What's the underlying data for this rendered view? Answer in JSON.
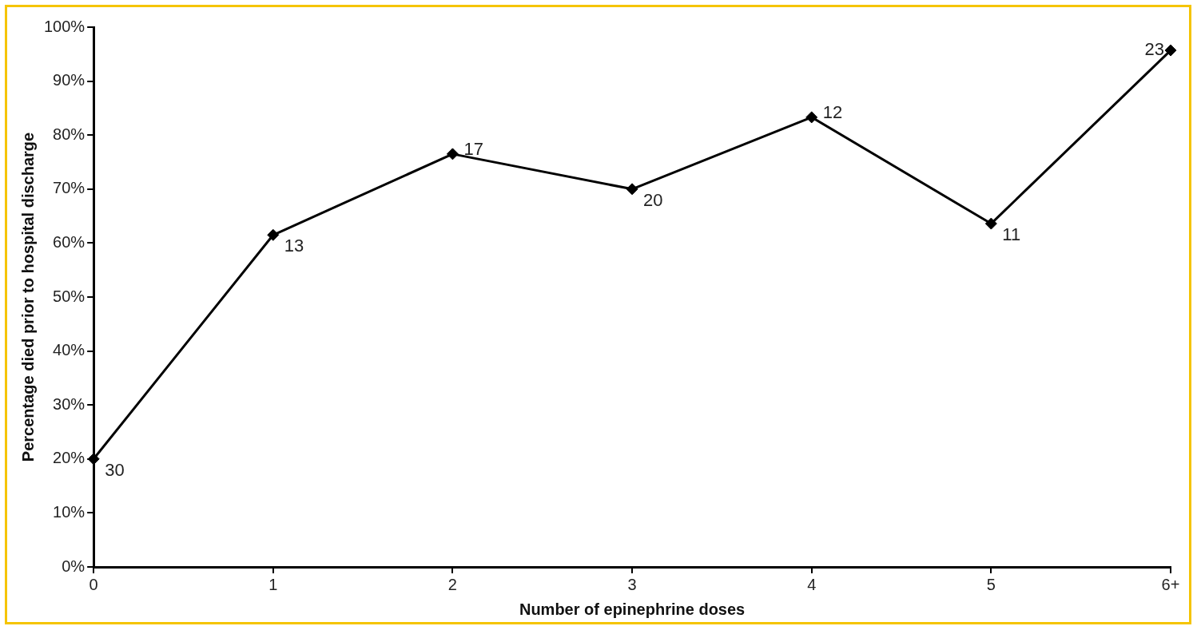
{
  "chart_data": {
    "type": "line",
    "xlabel": "Number of epinephrine doses",
    "ylabel": "Percentage died prior to hospital discharge",
    "categories": [
      "0",
      "1",
      "2",
      "3",
      "4",
      "5",
      "6+"
    ],
    "values": [
      20,
      61.5,
      76.5,
      70,
      83.3,
      63.6,
      95.7
    ],
    "color": "#000000",
    "marker": "diamond",
    "line_style": "solid",
    "grid": false,
    "legend": false,
    "ylim": [
      0,
      100
    ],
    "yticks": [
      {
        "value": 0,
        "label": "0%"
      },
      {
        "value": 10,
        "label": "10%"
      },
      {
        "value": 20,
        "label": "20%"
      },
      {
        "value": 30,
        "label": "30%"
      },
      {
        "value": 40,
        "label": "40%"
      },
      {
        "value": 50,
        "label": "50%"
      },
      {
        "value": 60,
        "label": "60%"
      },
      {
        "value": 70,
        "label": "70%"
      },
      {
        "value": 80,
        "label": "80%"
      },
      {
        "value": 90,
        "label": "90%"
      },
      {
        "value": 100,
        "label": "100%"
      }
    ],
    "annotations": [
      {
        "text": "30",
        "x": "0",
        "y": 20
      },
      {
        "text": "13",
        "x": "1",
        "y": 61.5
      },
      {
        "text": "17",
        "x": "2",
        "y": 76.5
      },
      {
        "text": "20",
        "x": "3",
        "y": 70
      },
      {
        "text": "12",
        "x": "4",
        "y": 83.3
      },
      {
        "text": "11",
        "x": "5",
        "y": 63.6
      },
      {
        "text": "23",
        "x": "6+",
        "y": 95.7
      }
    ]
  }
}
